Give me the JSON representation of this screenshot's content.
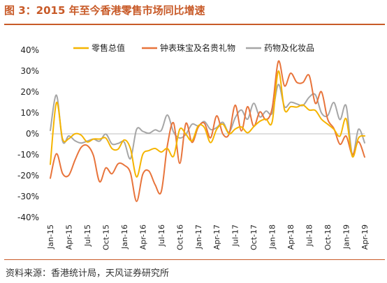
{
  "title": "图 3：2015 年至今香港零售市场同比增速",
  "source": "资料来源：香港统计局，天风证券研究所",
  "colors": {
    "title": "#c85a28",
    "rule": "#c85a28"
  },
  "chart_data": {
    "type": "line",
    "title": "",
    "xlabel": "",
    "ylabel": "",
    "ylim": [
      -40,
      40
    ],
    "yticks": [
      -40,
      -30,
      -20,
      -10,
      0,
      10,
      20,
      30,
      40
    ],
    "ytick_format": "percent",
    "grid": false,
    "legend_position": "top",
    "x": [
      "Jan-15",
      "Feb-15",
      "Mar-15",
      "Apr-15",
      "May-15",
      "Jun-15",
      "Jul-15",
      "Aug-15",
      "Sep-15",
      "Oct-15",
      "Nov-15",
      "Dec-15",
      "Jan-16",
      "Feb-16",
      "Mar-16",
      "Apr-16",
      "May-16",
      "Jun-16",
      "Jul-16",
      "Aug-16",
      "Sep-16",
      "Oct-16",
      "Nov-16",
      "Dec-16",
      "Jan-17",
      "Feb-17",
      "Mar-17",
      "Apr-17",
      "May-17",
      "Jun-17",
      "Jul-17",
      "Aug-17",
      "Sep-17",
      "Oct-17",
      "Nov-17",
      "Dec-17",
      "Jan-18",
      "Feb-18",
      "Mar-18",
      "Apr-18",
      "May-18",
      "Jun-18",
      "Jul-18",
      "Aug-18",
      "Sep-18",
      "Oct-18",
      "Nov-18",
      "Dec-18",
      "Jan-19",
      "Feb-19",
      "Mar-19",
      "Apr-19"
    ],
    "x_tick_labels": [
      "Jan-15",
      "Apr-15",
      "Jul-15",
      "Oct-15",
      "Jan-16",
      "Apr-16",
      "Jul-16",
      "Oct-16",
      "Jan-17",
      "Apr-17",
      "Jul-17",
      "Oct-17",
      "Jan-18",
      "Apr-18",
      "Jul-18",
      "Oct-18",
      "Jan-19",
      "Apr-19"
    ],
    "x_tick_every": 3,
    "series": [
      {
        "name": "零售总值",
        "color": "#f5b400",
        "values": [
          -14.6,
          14.9,
          -2.5,
          -2.3,
          0.0,
          -0.6,
          -3.9,
          -2.5,
          -2.5,
          -2.0,
          -7.0,
          -7.3,
          -2.9,
          -7.0,
          -20.6,
          -9.8,
          -8.0,
          -7.0,
          -8.7,
          -7.0,
          -10.7,
          2.2,
          -0.2,
          -3.3,
          3.8,
          3.0,
          -4.2,
          2.2,
          4.6,
          0.0,
          2.3,
          3.3,
          0.5,
          3.4,
          6.0,
          7.0,
          5.7,
          30.0,
          11.5,
          13.0,
          12.8,
          13.8,
          11.4,
          11.2,
          7.0,
          4.6,
          2.2,
          -1.1,
          7.2,
          -10.9,
          -2.0,
          -1.0
        ]
      },
      {
        "name": "钟表珠宝及名贵礼物",
        "color": "#e8743b",
        "values": [
          -21.2,
          -9.5,
          -19.0,
          -19.8,
          -12.6,
          -6.5,
          -5.6,
          -10.4,
          -22.9,
          -16.3,
          -19.1,
          -14.3,
          -15.0,
          -18.6,
          -32.3,
          -19.3,
          -17.8,
          -24.3,
          -27.7,
          -5.6,
          5.2,
          -14.1,
          5.0,
          -4.1,
          3.2,
          5.1,
          -1.9,
          8.6,
          -0.1,
          -0.1,
          13.7,
          1.4,
          13.0,
          3.6,
          10.5,
          6.7,
          12.3,
          34.7,
          22.9,
          29.0,
          24.6,
          24.6,
          27.9,
          14.6,
          20.1,
          7.0,
          2.6,
          -5.0,
          -1.1,
          -9.9,
          -3.8,
          -11.1
        ]
      },
      {
        "name": "药物及化妆品",
        "color": "#a6a6a6",
        "values": [
          1.6,
          18.5,
          -3.5,
          -1.0,
          -3.3,
          -4.4,
          -3.5,
          -2.5,
          -3.5,
          -0.1,
          -4.8,
          -4.6,
          -4.0,
          -11.9,
          2.1,
          1.2,
          0.3,
          1.9,
          1.6,
          9.0,
          0.8,
          -2.0,
          -0.2,
          4.6,
          3.8,
          5.9,
          2.1,
          3.0,
          5.5,
          0.8,
          7.7,
          11.4,
          7.0,
          14.6,
          8.1,
          10.9,
          9.9,
          23.6,
          13.0,
          15.1,
          14.3,
          13.6,
          17.5,
          18.7,
          10.0,
          8.7,
          15.0,
          6.8,
          13.4,
          -10.0,
          2.2,
          -4.3
        ]
      }
    ]
  }
}
